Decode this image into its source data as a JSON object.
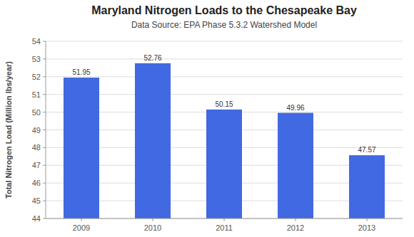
{
  "chart_data": {
    "type": "bar",
    "title": "Maryland Nitrogen Loads to the Chesapeake Bay",
    "subtitle": "Data Source:  EPA Phase 5.3.2 Watershed Model",
    "ylabel": "Total Nitrogen Load (Million lbs/year)",
    "categories": [
      "2009",
      "2010",
      "2011",
      "2012",
      "2013"
    ],
    "values": [
      51.95,
      52.76,
      50.15,
      49.96,
      47.57
    ],
    "color": "#4169E1",
    "ylim": [
      44,
      54
    ],
    "yticks": [
      44,
      45,
      46,
      47,
      48,
      49,
      50,
      51,
      52,
      53,
      54
    ],
    "grid": true,
    "data_labels": true
  }
}
